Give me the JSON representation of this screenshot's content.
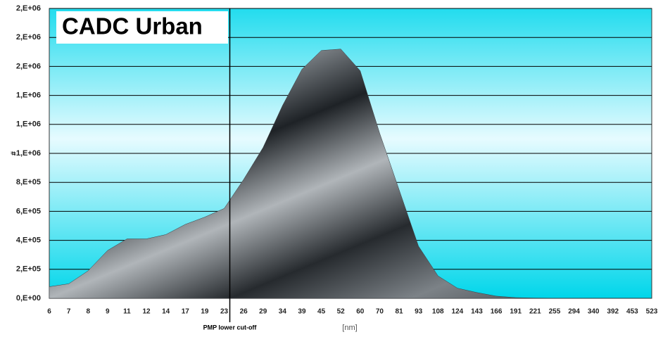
{
  "chart_data": {
    "type": "area",
    "title": "CADC Urban",
    "x_label": "[nm]",
    "y_label": "#",
    "annotation": {
      "text": "PMP lower cut-off",
      "x": "23"
    },
    "categories": [
      "6",
      "7",
      "8",
      "9",
      "11",
      "12",
      "14",
      "17",
      "19",
      "23",
      "26",
      "29",
      "34",
      "39",
      "45",
      "52",
      "60",
      "70",
      "81",
      "93",
      "108",
      "124",
      "143",
      "166",
      "191",
      "221",
      "255",
      "294",
      "340",
      "392",
      "453",
      "523"
    ],
    "series": [
      {
        "name": "CADC Urban",
        "color": "#3a3f44",
        "values": [
          80000,
          100000,
          190000,
          330000,
          410000,
          410000,
          440000,
          510000,
          560000,
          620000,
          820000,
          1040000,
          1330000,
          1580000,
          1710000,
          1720000,
          1570000,
          1140000,
          750000,
          360000,
          155000,
          70000,
          40000,
          15000,
          5000,
          2000,
          1000,
          500,
          0,
          0,
          0,
          0
        ]
      }
    ],
    "ylim": [
      0,
      2000000
    ],
    "yticks": [
      {
        "value": 0,
        "label": "0,E+00"
      },
      {
        "value": 200000,
        "label": "2,E+05"
      },
      {
        "value": 400000,
        "label": "4,E+05"
      },
      {
        "value": 600000,
        "label": "6,E+05"
      },
      {
        "value": 800000,
        "label": "8,E+05"
      },
      {
        "value": 1000000,
        "label": "1,E+06"
      },
      {
        "value": 1200000,
        "label": "1,E+06"
      },
      {
        "value": 1400000,
        "label": "1,E+06"
      },
      {
        "value": 1600000,
        "label": "2,E+06"
      },
      {
        "value": 1800000,
        "label": "2,E+06"
      },
      {
        "value": 2000000,
        "label": "2,E+06"
      }
    ],
    "grid": true
  }
}
